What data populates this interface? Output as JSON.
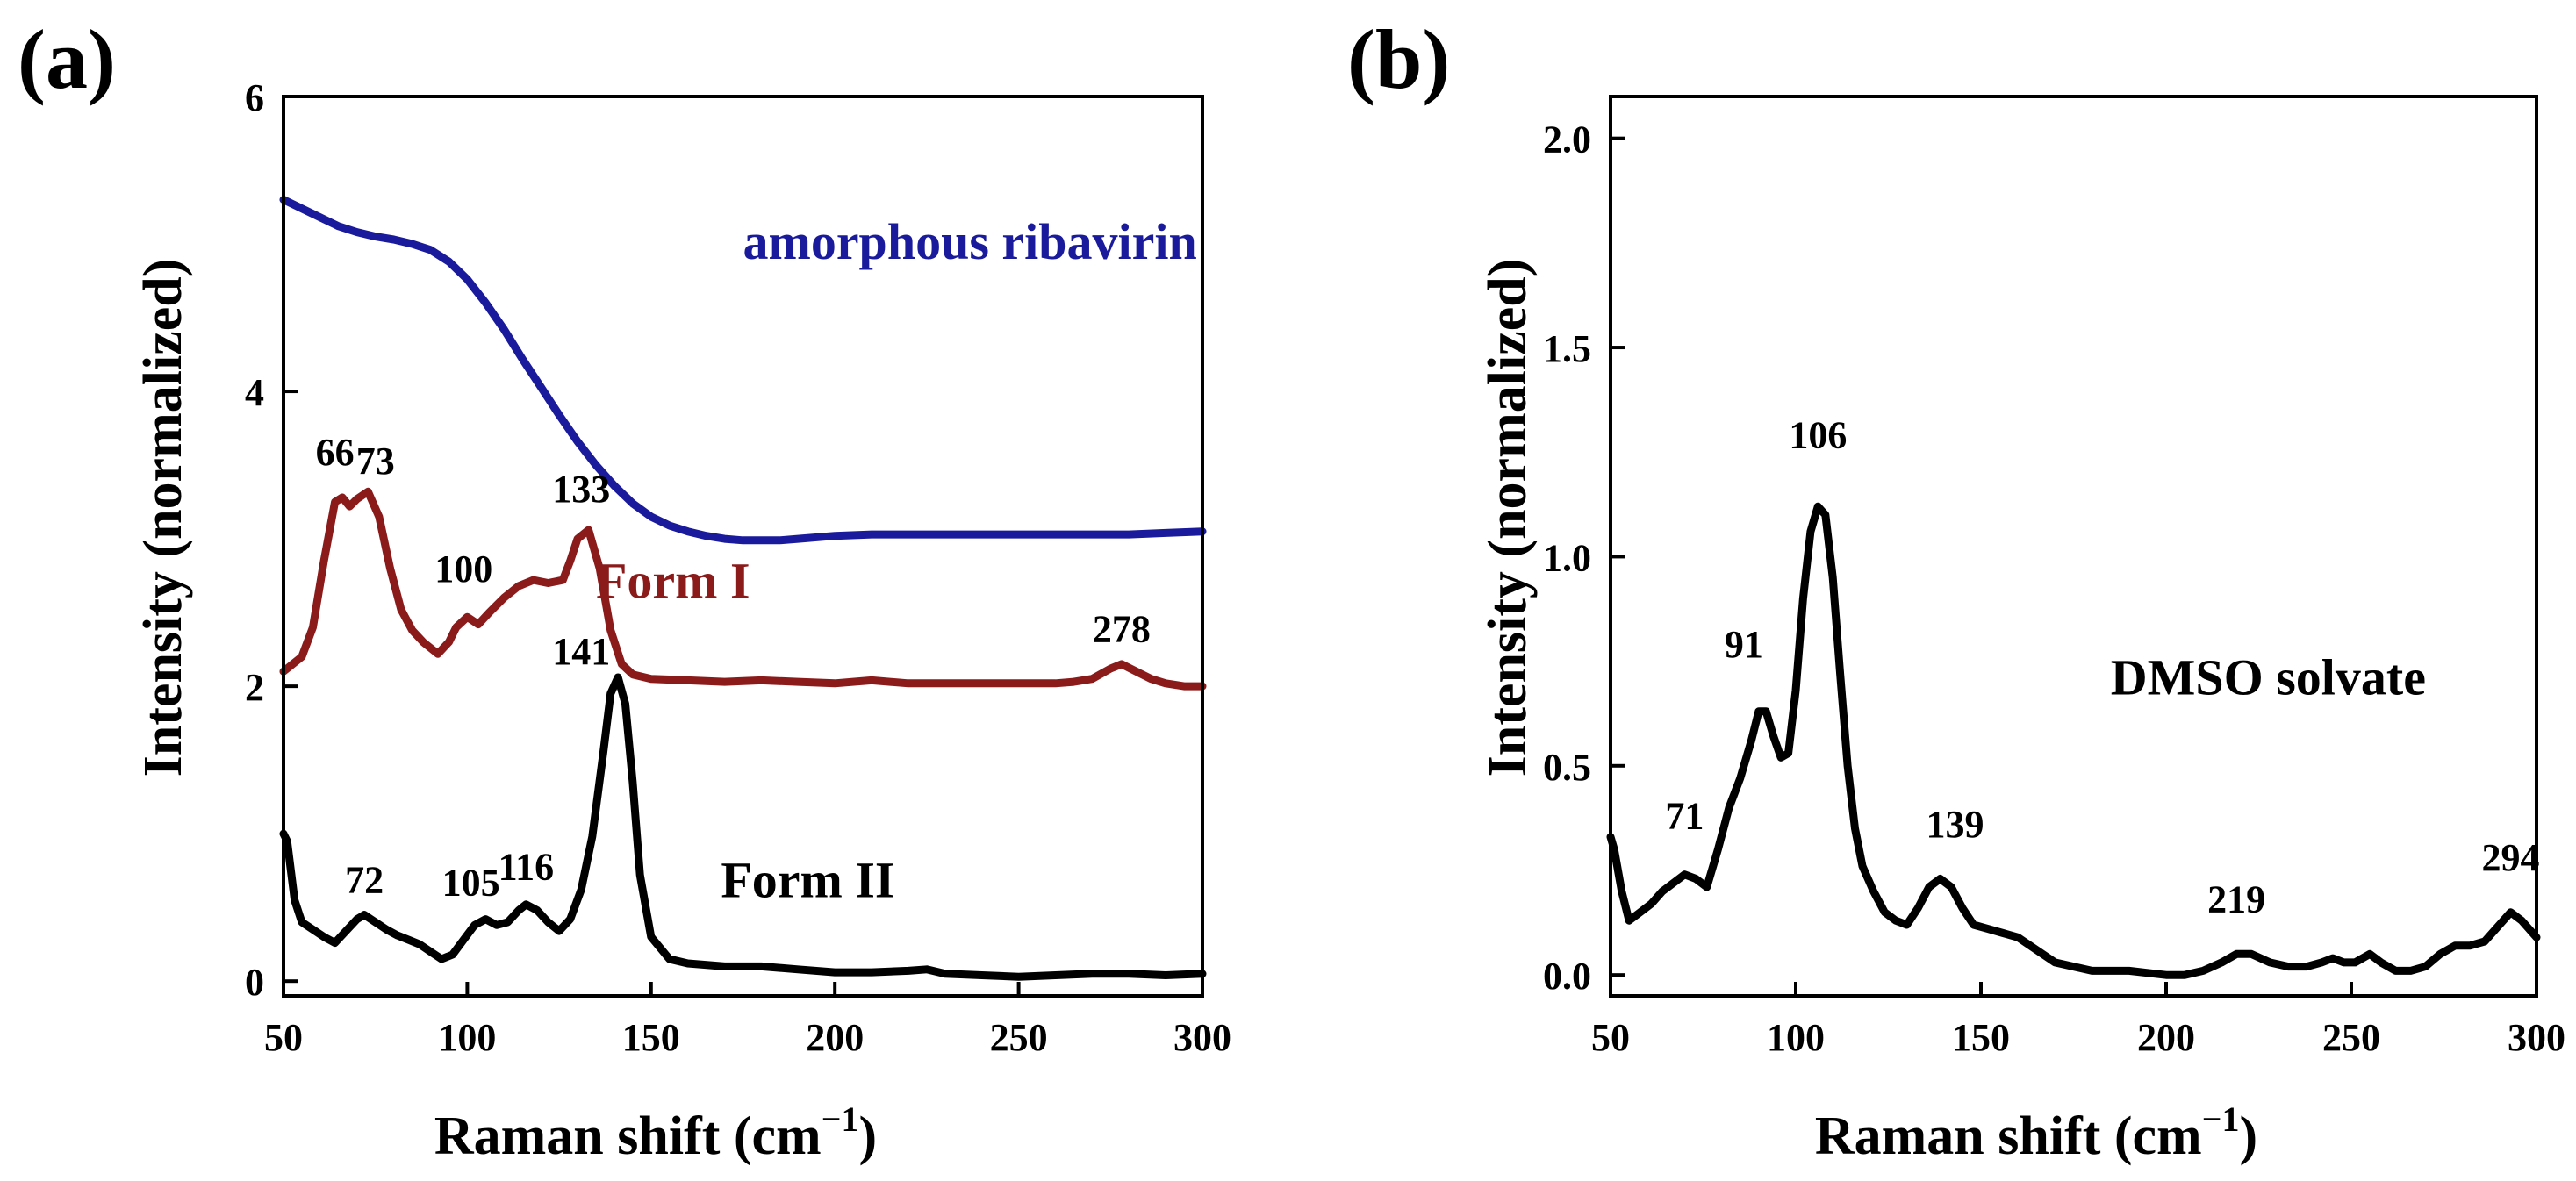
{
  "figure": {
    "background": "#ffffff"
  },
  "chart_data": [
    {
      "id": "a",
      "panel_label": "(a)",
      "type": "line",
      "xlabel": "Raman shift (cm",
      "xlabel_sup": "−1",
      "xlabel_tail": ")",
      "ylabel": "Intensity (normalized)",
      "xlim": [
        50,
        300
      ],
      "ylim": [
        -0.1,
        6
      ],
      "xticks": [
        50,
        100,
        150,
        200,
        250,
        300
      ],
      "yticks": [
        0,
        2,
        4,
        6
      ],
      "series": [
        {
          "name": "amorphous ribavirin",
          "color": "#1a1a9c",
          "x": [
            50,
            55,
            60,
            65,
            70,
            75,
            80,
            85,
            90,
            95,
            100,
            105,
            110,
            115,
            120,
            125,
            130,
            135,
            140,
            145,
            150,
            155,
            160,
            165,
            170,
            175,
            180,
            185,
            190,
            200,
            210,
            220,
            230,
            240,
            250,
            260,
            270,
            280,
            290,
            300
          ],
          "y": [
            5.3,
            5.24,
            5.18,
            5.12,
            5.08,
            5.05,
            5.03,
            5.0,
            4.96,
            4.88,
            4.76,
            4.6,
            4.42,
            4.22,
            4.03,
            3.84,
            3.66,
            3.5,
            3.36,
            3.24,
            3.15,
            3.09,
            3.05,
            3.02,
            3.0,
            2.99,
            2.99,
            2.99,
            3.0,
            3.02,
            3.03,
            3.03,
            3.03,
            3.03,
            3.03,
            3.03,
            3.03,
            3.03,
            3.04,
            3.05
          ]
        },
        {
          "name": "Form I",
          "color": "#8b1a1a",
          "x": [
            50,
            55,
            58,
            61,
            64,
            66,
            68,
            70,
            73,
            76,
            79,
            82,
            85,
            88,
            92,
            95,
            97,
            100,
            103,
            106,
            110,
            114,
            118,
            122,
            126,
            128,
            130,
            133,
            136,
            139,
            142,
            145,
            150,
            160,
            170,
            180,
            190,
            200,
            210,
            220,
            230,
            240,
            250,
            260,
            265,
            270,
            275,
            278,
            282,
            286,
            290,
            295,
            300
          ],
          "y": [
            2.1,
            2.2,
            2.4,
            2.85,
            3.25,
            3.28,
            3.22,
            3.27,
            3.32,
            3.15,
            2.8,
            2.52,
            2.38,
            2.3,
            2.22,
            2.3,
            2.4,
            2.47,
            2.42,
            2.5,
            2.6,
            2.68,
            2.72,
            2.7,
            2.72,
            2.85,
            3.0,
            3.06,
            2.8,
            2.38,
            2.15,
            2.08,
            2.05,
            2.04,
            2.03,
            2.04,
            2.03,
            2.02,
            2.04,
            2.02,
            2.02,
            2.02,
            2.02,
            2.02,
            2.03,
            2.05,
            2.12,
            2.15,
            2.1,
            2.05,
            2.02,
            2.0,
            2.0
          ]
        },
        {
          "name": "Form II",
          "color": "#000000",
          "x": [
            50,
            51,
            53,
            55,
            58,
            61,
            64,
            67,
            70,
            72,
            75,
            78,
            81,
            84,
            87,
            90,
            93,
            96,
            99,
            102,
            105,
            108,
            111,
            114,
            116,
            119,
            122,
            125,
            128,
            131,
            134,
            137,
            139,
            141,
            143,
            145,
            147,
            150,
            155,
            160,
            170,
            180,
            190,
            200,
            210,
            220,
            225,
            230,
            240,
            250,
            260,
            270,
            280,
            290,
            300
          ],
          "y": [
            1.0,
            0.95,
            0.55,
            0.4,
            0.35,
            0.3,
            0.26,
            0.34,
            0.42,
            0.45,
            0.4,
            0.35,
            0.31,
            0.28,
            0.25,
            0.2,
            0.15,
            0.18,
            0.28,
            0.38,
            0.42,
            0.38,
            0.4,
            0.48,
            0.52,
            0.48,
            0.4,
            0.34,
            0.42,
            0.62,
            0.98,
            1.55,
            1.95,
            2.06,
            1.88,
            1.35,
            0.72,
            0.3,
            0.15,
            0.12,
            0.1,
            0.1,
            0.08,
            0.06,
            0.06,
            0.07,
            0.08,
            0.05,
            0.04,
            0.03,
            0.04,
            0.05,
            0.05,
            0.04,
            0.05
          ]
        }
      ],
      "series_labels": [
        {
          "text": "amorphous ribavirin",
          "color": "#1a1a9c",
          "x": 175,
          "y": 4.9
        },
        {
          "text": "Form I",
          "color": "#8b1a1a",
          "x": 135,
          "y": 2.6
        },
        {
          "text": "Form II",
          "color": "#000000",
          "x": 169,
          "y": 0.57
        }
      ],
      "annotations": [
        {
          "text": "66",
          "x": 64,
          "y": 3.5
        },
        {
          "text": "73",
          "x": 75,
          "y": 3.44
        },
        {
          "text": "100",
          "x": 99,
          "y": 2.71
        },
        {
          "text": "133",
          "x": 131,
          "y": 3.25
        },
        {
          "text": "278",
          "x": 278,
          "y": 2.3
        },
        {
          "text": "141",
          "x": 131,
          "y": 2.15
        },
        {
          "text": "72",
          "x": 72,
          "y": 0.6
        },
        {
          "text": "105",
          "x": 101,
          "y": 0.58
        },
        {
          "text": "116",
          "x": 116,
          "y": 0.69
        }
      ]
    },
    {
      "id": "b",
      "panel_label": "(b)",
      "type": "line",
      "xlabel": "Raman shift (cm",
      "xlabel_sup": "−1",
      "xlabel_tail": ")",
      "ylabel": "Intensity (normalized)",
      "xlim": [
        50,
        300
      ],
      "ylim": [
        -0.05,
        2.1
      ],
      "xticks": [
        50,
        100,
        150,
        200,
        250,
        300
      ],
      "yticks": [
        0.0,
        0.5,
        1.0,
        1.5,
        2.0
      ],
      "ytick_labels": [
        "0.0",
        "0.5",
        "1.0",
        "1.5",
        "2.0"
      ],
      "series": [
        {
          "name": "DMSO solvate",
          "color": "#000000",
          "x": [
            50,
            51,
            53,
            55,
            58,
            61,
            64,
            67,
            70,
            73,
            76,
            79,
            82,
            85,
            88,
            90,
            92,
            94,
            96,
            98,
            100,
            102,
            104,
            106,
            108,
            110,
            112,
            114,
            116,
            118,
            121,
            124,
            127,
            130,
            133,
            136,
            139,
            142,
            145,
            148,
            152,
            156,
            160,
            165,
            170,
            175,
            180,
            185,
            190,
            195,
            200,
            205,
            210,
            215,
            219,
            223,
            228,
            233,
            238,
            242,
            245,
            248,
            251,
            255,
            258,
            262,
            266,
            270,
            274,
            278,
            282,
            286,
            290,
            293,
            296,
            300
          ],
          "y": [
            0.33,
            0.3,
            0.2,
            0.13,
            0.15,
            0.17,
            0.2,
            0.22,
            0.24,
            0.23,
            0.21,
            0.3,
            0.4,
            0.47,
            0.56,
            0.63,
            0.63,
            0.57,
            0.52,
            0.53,
            0.68,
            0.9,
            1.06,
            1.12,
            1.1,
            0.95,
            0.72,
            0.5,
            0.35,
            0.26,
            0.2,
            0.15,
            0.13,
            0.12,
            0.16,
            0.21,
            0.23,
            0.21,
            0.16,
            0.12,
            0.11,
            0.1,
            0.09,
            0.06,
            0.03,
            0.02,
            0.01,
            0.01,
            0.01,
            0.005,
            0.0,
            0.0,
            0.01,
            0.03,
            0.05,
            0.05,
            0.03,
            0.02,
            0.02,
            0.03,
            0.04,
            0.03,
            0.03,
            0.05,
            0.03,
            0.01,
            0.01,
            0.02,
            0.05,
            0.07,
            0.07,
            0.08,
            0.12,
            0.15,
            0.13,
            0.09
          ]
        }
      ],
      "series_labels": [
        {
          "text": "DMSO solvate",
          "color": "#000000",
          "x": 185,
          "y": 0.67
        }
      ],
      "annotations": [
        {
          "text": "71",
          "x": 70,
          "y": 0.35
        },
        {
          "text": "91",
          "x": 86,
          "y": 0.76
        },
        {
          "text": "106",
          "x": 106,
          "y": 1.26
        },
        {
          "text": "139",
          "x": 143,
          "y": 0.33
        },
        {
          "text": "219",
          "x": 219,
          "y": 0.15
        },
        {
          "text": "294",
          "x": 293,
          "y": 0.25
        }
      ]
    }
  ]
}
